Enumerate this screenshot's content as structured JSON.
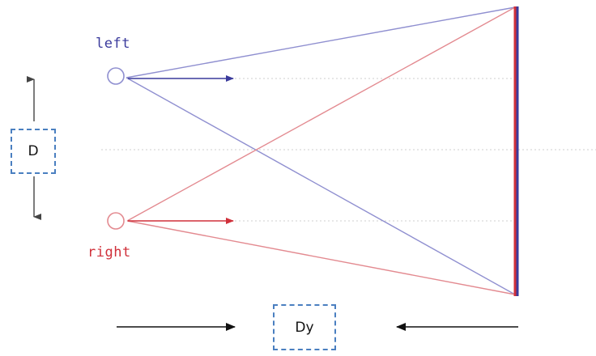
{
  "labels": {
    "left": "left",
    "right": "right",
    "D": "D",
    "Dy": "Dy"
  },
  "colors": {
    "left_eye": "#3a3a9c",
    "right_eye": "#d0303a",
    "left_ray": "#8f8fd0",
    "right_ray": "#e38a90",
    "box_border": "#4a7fc0"
  }
}
